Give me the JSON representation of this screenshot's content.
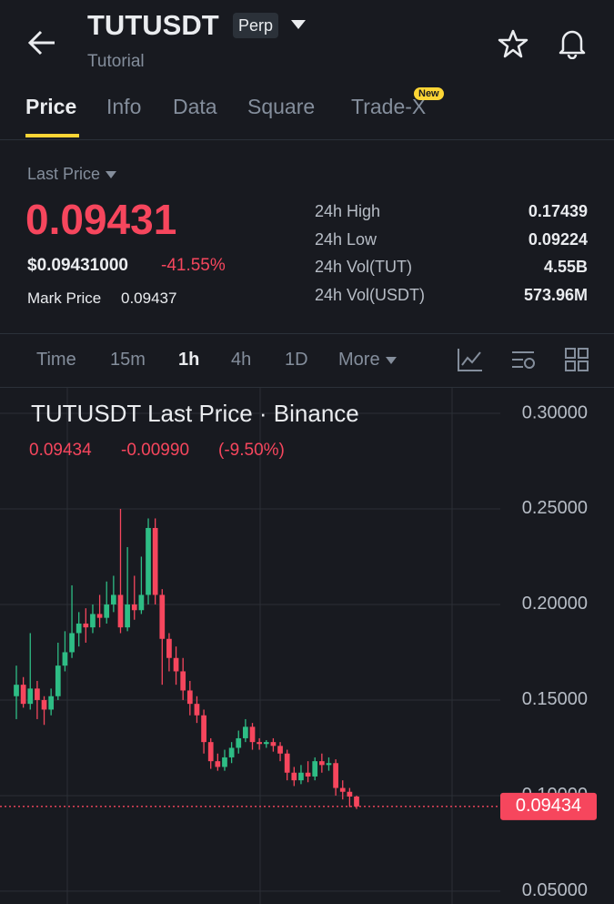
{
  "header": {
    "title": "TUTUSDT",
    "badge": "Perp",
    "subtitle": "Tutorial"
  },
  "tabs": {
    "items": [
      "Price",
      "Info",
      "Data",
      "Square",
      "Trade-X"
    ],
    "new_badge": "New"
  },
  "stats": {
    "last_price_label": "Last Price",
    "last_price": "0.09431",
    "usd_price": "$0.09431000",
    "change": "-41.55%",
    "mark_price_label": "Mark Price",
    "mark_price": "0.09437",
    "rows": [
      [
        "24h High",
        "0.17439"
      ],
      [
        "24h Low",
        "0.09224"
      ],
      [
        "24h Vol(TUT)",
        "4.55B"
      ],
      [
        "24h Vol(USDT)",
        "573.96M"
      ]
    ]
  },
  "intervals": [
    "Time",
    "15m",
    "1h",
    "4h",
    "1D",
    "More"
  ],
  "chart_data": {
    "type": "candlestick",
    "title": "TUTUSDT Last Price · Binance",
    "legend": {
      "last": "0.09434",
      "change": "-0.00990",
      "change_pct": "(-9.50%)"
    },
    "up_color": "#2ebd85",
    "down_color": "#f6465d",
    "grid": true,
    "ylim": [
      0.0433,
      0.3138
    ],
    "yticks": [
      {
        "value": 0.05,
        "label": "0.05000"
      },
      {
        "value": 0.1,
        "label": "0.10000"
      },
      {
        "value": 0.15,
        "label": "0.15000"
      },
      {
        "value": 0.2,
        "label": "0.20000"
      },
      {
        "value": 0.25,
        "label": "0.25000"
      },
      {
        "value": 0.3,
        "label": "0.30000"
      }
    ],
    "last_price_line": {
      "value": 0.09434,
      "label": "0.09434"
    },
    "candles": [
      {
        "o": 0.152,
        "h": 0.168,
        "l": 0.14,
        "c": 0.158
      },
      {
        "o": 0.158,
        "h": 0.162,
        "l": 0.146,
        "c": 0.148
      },
      {
        "o": 0.148,
        "h": 0.185,
        "l": 0.145,
        "c": 0.156
      },
      {
        "o": 0.156,
        "h": 0.16,
        "l": 0.14,
        "c": 0.15
      },
      {
        "o": 0.15,
        "h": 0.152,
        "l": 0.137,
        "c": 0.145
      },
      {
        "o": 0.145,
        "h": 0.156,
        "l": 0.142,
        "c": 0.152
      },
      {
        "o": 0.152,
        "h": 0.18,
        "l": 0.15,
        "c": 0.168
      },
      {
        "o": 0.168,
        "h": 0.186,
        "l": 0.165,
        "c": 0.175
      },
      {
        "o": 0.175,
        "h": 0.21,
        "l": 0.172,
        "c": 0.185
      },
      {
        "o": 0.185,
        "h": 0.196,
        "l": 0.178,
        "c": 0.19
      },
      {
        "o": 0.19,
        "h": 0.198,
        "l": 0.18,
        "c": 0.188
      },
      {
        "o": 0.188,
        "h": 0.2,
        "l": 0.185,
        "c": 0.195
      },
      {
        "o": 0.195,
        "h": 0.205,
        "l": 0.188,
        "c": 0.193
      },
      {
        "o": 0.193,
        "h": 0.212,
        "l": 0.19,
        "c": 0.2
      },
      {
        "o": 0.2,
        "h": 0.215,
        "l": 0.196,
        "c": 0.205
      },
      {
        "o": 0.205,
        "h": 0.25,
        "l": 0.185,
        "c": 0.188
      },
      {
        "o": 0.188,
        "h": 0.23,
        "l": 0.186,
        "c": 0.2
      },
      {
        "o": 0.2,
        "h": 0.215,
        "l": 0.192,
        "c": 0.197
      },
      {
        "o": 0.197,
        "h": 0.225,
        "l": 0.195,
        "c": 0.205
      },
      {
        "o": 0.205,
        "h": 0.245,
        "l": 0.2,
        "c": 0.24
      },
      {
        "o": 0.24,
        "h": 0.245,
        "l": 0.2,
        "c": 0.205
      },
      {
        "o": 0.205,
        "h": 0.208,
        "l": 0.158,
        "c": 0.182
      },
      {
        "o": 0.182,
        "h": 0.185,
        "l": 0.165,
        "c": 0.172
      },
      {
        "o": 0.172,
        "h": 0.178,
        "l": 0.158,
        "c": 0.165
      },
      {
        "o": 0.165,
        "h": 0.172,
        "l": 0.15,
        "c": 0.155
      },
      {
        "o": 0.155,
        "h": 0.16,
        "l": 0.142,
        "c": 0.148
      },
      {
        "o": 0.148,
        "h": 0.152,
        "l": 0.138,
        "c": 0.142
      },
      {
        "o": 0.142,
        "h": 0.145,
        "l": 0.122,
        "c": 0.128
      },
      {
        "o": 0.128,
        "h": 0.13,
        "l": 0.114,
        "c": 0.118
      },
      {
        "o": 0.118,
        "h": 0.122,
        "l": 0.113,
        "c": 0.115
      },
      {
        "o": 0.115,
        "h": 0.124,
        "l": 0.113,
        "c": 0.12
      },
      {
        "o": 0.12,
        "h": 0.128,
        "l": 0.117,
        "c": 0.125
      },
      {
        "o": 0.125,
        "h": 0.134,
        "l": 0.122,
        "c": 0.13
      },
      {
        "o": 0.13,
        "h": 0.14,
        "l": 0.128,
        "c": 0.136
      },
      {
        "o": 0.136,
        "h": 0.138,
        "l": 0.124,
        "c": 0.128
      },
      {
        "o": 0.128,
        "h": 0.13,
        "l": 0.124,
        "c": 0.127
      },
      {
        "o": 0.127,
        "h": 0.129,
        "l": 0.125,
        "c": 0.128
      },
      {
        "o": 0.128,
        "h": 0.13,
        "l": 0.123,
        "c": 0.126
      },
      {
        "o": 0.126,
        "h": 0.128,
        "l": 0.118,
        "c": 0.122
      },
      {
        "o": 0.122,
        "h": 0.124,
        "l": 0.108,
        "c": 0.112
      },
      {
        "o": 0.112,
        "h": 0.115,
        "l": 0.105,
        "c": 0.108
      },
      {
        "o": 0.108,
        "h": 0.116,
        "l": 0.106,
        "c": 0.112
      },
      {
        "o": 0.112,
        "h": 0.118,
        "l": 0.107,
        "c": 0.11
      },
      {
        "o": 0.11,
        "h": 0.12,
        "l": 0.108,
        "c": 0.118
      },
      {
        "o": 0.118,
        "h": 0.122,
        "l": 0.112,
        "c": 0.116
      },
      {
        "o": 0.116,
        "h": 0.12,
        "l": 0.113,
        "c": 0.117
      },
      {
        "o": 0.117,
        "h": 0.119,
        "l": 0.1,
        "c": 0.104
      },
      {
        "o": 0.104,
        "h": 0.108,
        "l": 0.098,
        "c": 0.102
      },
      {
        "o": 0.102,
        "h": 0.104,
        "l": 0.094,
        "c": 0.0995
      },
      {
        "o": 0.0995,
        "h": 0.1,
        "l": 0.093,
        "c": 0.09434
      }
    ]
  }
}
